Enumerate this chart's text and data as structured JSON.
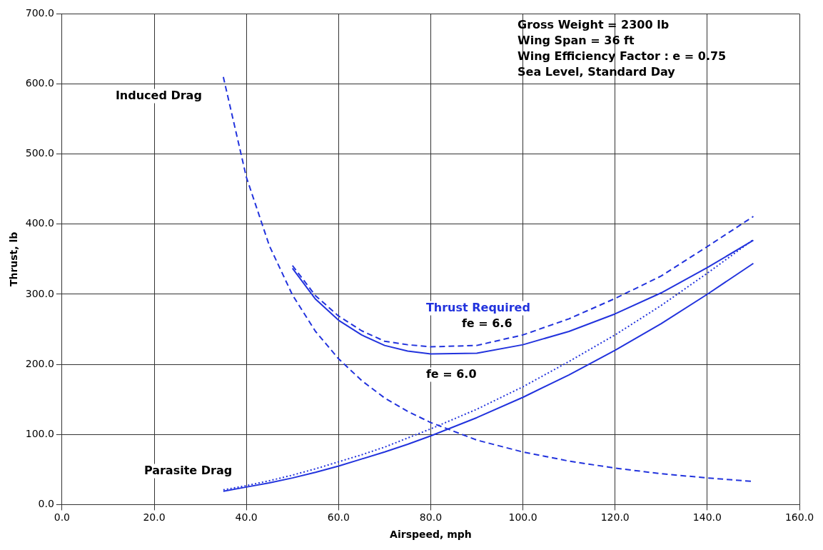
{
  "chart_data": {
    "type": "line",
    "xlabel": "Airspeed, mph",
    "ylabel": "Thrust, lb",
    "xlim": [
      0,
      160
    ],
    "xticks": [
      {
        "value": 0,
        "label": "0.0"
      },
      {
        "value": 20,
        "label": "20.0"
      },
      {
        "value": 40,
        "label": "40.0"
      },
      {
        "value": 60,
        "label": "60.0"
      },
      {
        "value": 80,
        "label": "80.0"
      },
      {
        "value": 100,
        "label": "100.0"
      },
      {
        "value": 120,
        "label": "120.0"
      },
      {
        "value": 140,
        "label": "140.0"
      },
      {
        "value": 160,
        "label": "160.0"
      }
    ],
    "ylim": [
      0,
      700
    ],
    "yticks": [
      {
        "value": 0,
        "label": "0.0"
      },
      {
        "value": 100,
        "label": "100.0"
      },
      {
        "value": 200,
        "label": "200.0"
      },
      {
        "value": 300,
        "label": "300.0"
      },
      {
        "value": 400,
        "label": "400.0"
      },
      {
        "value": 500,
        "label": "500.0"
      },
      {
        "value": 600,
        "label": "600.0"
      },
      {
        "value": 700,
        "label": "700.0"
      }
    ],
    "grid": true,
    "legend": false,
    "marker": "none",
    "series": [
      {
        "color": "#2233dd",
        "line_style": "dashed",
        "x": [
          35,
          40,
          45,
          50,
          55,
          60,
          65,
          70,
          75,
          80,
          90,
          100,
          110,
          120,
          130,
          140,
          150
        ],
        "values": [
          610,
          467,
          369,
          299,
          247,
          208,
          177,
          152,
          133,
          117,
          92,
          75,
          62,
          52,
          44,
          38,
          33
        ]
      },
      {
        "color": "#2233dd",
        "line_style": "solid",
        "x": [
          35,
          40,
          45,
          50,
          55,
          60,
          65,
          70,
          75,
          80,
          90,
          100,
          110,
          120,
          130,
          140,
          150
        ],
        "values": [
          19,
          25,
          31,
          38,
          46,
          55,
          65,
          75,
          86,
          98,
          124,
          153,
          185,
          220,
          258,
          300,
          344
        ]
      },
      {
        "color": "#2233dd",
        "line_style": "dotted",
        "x": [
          35,
          40,
          45,
          50,
          55,
          60,
          65,
          70,
          75,
          80,
          90,
          100,
          110,
          120,
          130,
          140,
          150
        ],
        "values": [
          21,
          27,
          34,
          42,
          51,
          61,
          71,
          82,
          95,
          108,
          136,
          168,
          204,
          242,
          284,
          330,
          378
        ]
      },
      {
        "color": "#2233dd",
        "line_style": "solid",
        "x": [
          50,
          55,
          60,
          65,
          70,
          75,
          80,
          90,
          100,
          110,
          120,
          130,
          140,
          150
        ],
        "values": [
          337,
          293,
          263,
          242,
          227,
          219,
          215,
          216,
          228,
          247,
          272,
          302,
          338,
          377
        ]
      },
      {
        "color": "#2233dd",
        "line_style": "dashed",
        "x": [
          50,
          55,
          60,
          65,
          70,
          75,
          80,
          90,
          100,
          110,
          120,
          130,
          140,
          150
        ],
        "values": [
          341,
          298,
          269,
          248,
          233,
          228,
          225,
          227,
          242,
          265,
          294,
          326,
          368,
          411
        ]
      }
    ],
    "annotations": [
      "Gross Weight = 2300 lb",
      "Wing Span = 36 ft",
      "Wing Efficiency Factor : e = 0.75",
      "Sea Level, Standard Day",
      "Induced Drag",
      "Parasite Drag",
      "Thrust Required",
      "fe = 6.6",
      "fe = 6.0"
    ]
  }
}
